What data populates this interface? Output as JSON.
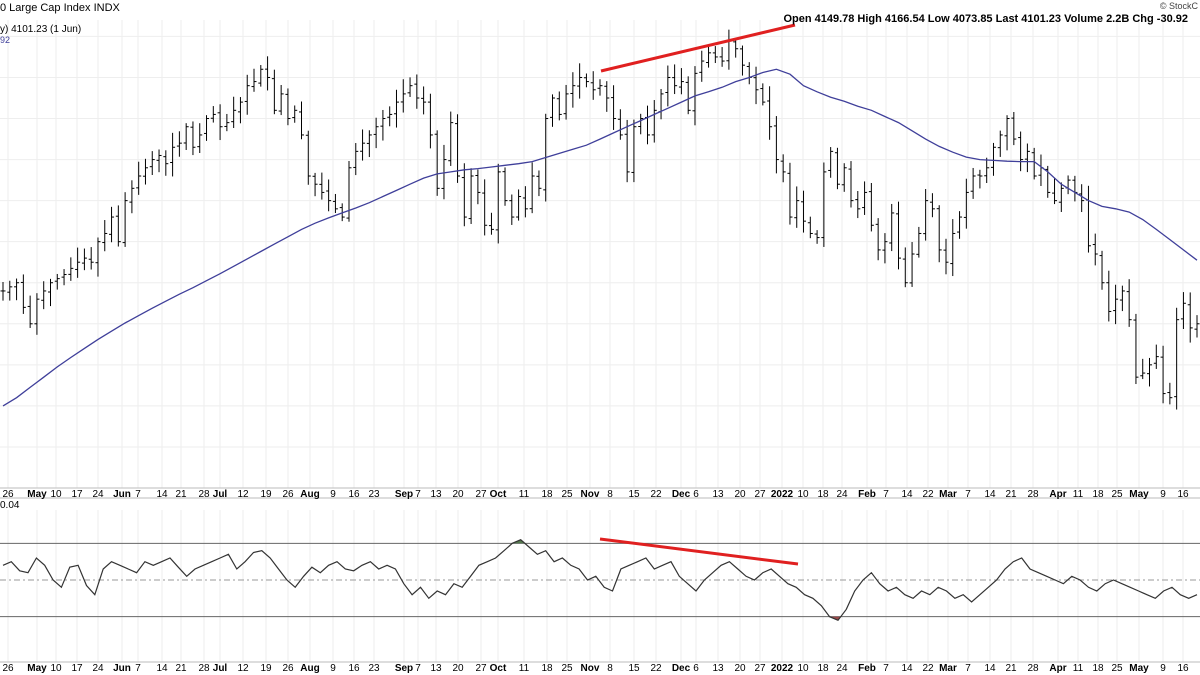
{
  "header": {
    "title": "0 Large Cap Index INDX",
    "legend_main": "y) 4101.23 (1 Jun)",
    "legend_sub": "92",
    "ohlc": "Open 4149.78  High 4166.54  Low 4073.85  Last 4101.23  Volume 2.2B  Chg -30.92",
    "source": "© StockC"
  },
  "lower_panel": {
    "label": "0.04"
  },
  "colors": {
    "price_bars": "#000000",
    "moving_average": "#3f3f9a",
    "trendline": "#e02020",
    "osc_line": "#333333",
    "overbought_fill": "#557a4e",
    "oversold_fill": "#9a4a4a",
    "grid": "#eeeeee"
  },
  "chart_data": [
    {
      "type": "ohlc",
      "xlabels": [
        "26",
        "May",
        "10",
        "17",
        "24",
        "Jun",
        "7",
        "14",
        "21",
        "28",
        "Jul",
        "12",
        "19",
        "26",
        "Aug",
        "9",
        "16",
        "23",
        "Sep",
        "7",
        "13",
        "20",
        "27",
        "Oct",
        "11",
        "18",
        "25",
        "Nov",
        "8",
        "15",
        "22",
        "Dec",
        "6",
        "13",
        "20",
        "27",
        "2022",
        "10",
        "18",
        "24",
        "Feb",
        "7",
        "14",
        "22",
        "Mar",
        "7",
        "14",
        "21",
        "28",
        "Apr",
        "11",
        "18",
        "25",
        "May",
        "9",
        "16"
      ],
      "bold_labels": [
        "May",
        "Jun",
        "Jul",
        "Aug",
        "Sep",
        "Oct",
        "Nov",
        "Dec",
        "2022",
        "Feb",
        "Mar",
        "Apr"
      ],
      "series": [
        {
          "name": "",
          "kind": "close_estimate",
          "values": [
            4180,
            4190,
            4200,
            4140,
            4100,
            4160,
            4180,
            4200,
            4210,
            4220,
            4235,
            4250,
            4260,
            4250,
            4300,
            4320,
            4360,
            4300,
            4400,
            4430,
            4460,
            4480,
            4500,
            4510,
            4490,
            4530,
            4540,
            4580,
            4530,
            4560,
            4600,
            4610,
            4580,
            4590,
            4620,
            4640,
            4680,
            4690,
            4720,
            4700,
            4620,
            4660,
            4600,
            4620,
            4560,
            4460,
            4440,
            4420,
            4400,
            4380,
            4360,
            4480,
            4520,
            4540,
            4560,
            4580,
            4600,
            4610,
            4640,
            4660,
            4680,
            4650,
            4640,
            4560,
            4430,
            4500,
            4590,
            4460,
            4360,
            4460,
            4420,
            4340,
            4330,
            4470,
            4400,
            4360,
            4410,
            4380,
            4460,
            4430,
            4600,
            4650,
            4610,
            4660,
            4680,
            4700,
            4690,
            4670,
            4680,
            4650,
            4600,
            4560,
            4470,
            4580,
            4600,
            4560,
            4620,
            4660,
            4700,
            4680,
            4690,
            4620,
            4710,
            4740,
            4760,
            4750,
            4740,
            4790,
            4770,
            4730,
            4700,
            4670,
            4640,
            4580,
            4500,
            4470,
            4360,
            4400,
            4350,
            4320,
            4310,
            4470,
            4520,
            4440,
            4480,
            4400,
            4380,
            4420,
            4340,
            4280,
            4300,
            4370,
            4260,
            4200,
            4270,
            4320,
            4400,
            4380,
            4280,
            4250,
            4320,
            4360,
            4420,
            4460,
            4460,
            4480,
            4530,
            4560,
            4600,
            4550,
            4500,
            4520,
            4460,
            4480,
            4420,
            4400,
            4430,
            4450,
            4420,
            4400,
            4290,
            4270,
            4200,
            4130,
            4160,
            4180,
            4110,
            3970,
            3980,
            4000,
            4020,
            3930,
            3920,
            4110,
            4150,
            4090,
            4100
          ]
        },
        {
          "name": "",
          "kind": "moving_average",
          "values": [
            3900,
            3920,
            3945,
            3970,
            3995,
            4018,
            4040,
            4062,
            4082,
            4102,
            4120,
            4138,
            4155,
            4172,
            4188,
            4205,
            4222,
            4240,
            4258,
            4276,
            4294,
            4312,
            4330,
            4345,
            4358,
            4370,
            4382,
            4395,
            4410,
            4425,
            4440,
            4455,
            4465,
            4470,
            4475,
            4478,
            4482,
            4486,
            4490,
            4495,
            4505,
            4515,
            4525,
            4535,
            4550,
            4565,
            4580,
            4595,
            4610,
            4625,
            4640,
            4655,
            4665,
            4676,
            4690,
            4700,
            4712,
            4720,
            4708,
            4680,
            4665,
            4652,
            4642,
            4630,
            4620,
            4605,
            4590,
            4570,
            4550,
            4532,
            4518,
            4506,
            4500,
            4498,
            4496,
            4495,
            4495,
            4470,
            4440,
            4420,
            4400,
            4386,
            4380,
            4372,
            4354,
            4330,
            4305,
            4280,
            4255
          ]
        }
      ],
      "ylim": [
        3700,
        4840
      ],
      "annotations": [
        "price trendline Nov-Jan (higher highs)"
      ]
    },
    {
      "type": "line",
      "name": "",
      "values": [
        58,
        60,
        55,
        54,
        62,
        58,
        50,
        46,
        57,
        58,
        47,
        42,
        56,
        60,
        58,
        56,
        54,
        60,
        58,
        60,
        62,
        57,
        52,
        56,
        58,
        60,
        62,
        64,
        56,
        60,
        65,
        66,
        62,
        56,
        50,
        46,
        52,
        57,
        54,
        58,
        60,
        56,
        55,
        58,
        60,
        56,
        58,
        56,
        48,
        42,
        46,
        40,
        44,
        42,
        48,
        46,
        52,
        58,
        60,
        62,
        66,
        70,
        72,
        68,
        64,
        66,
        60,
        62,
        58,
        56,
        50,
        52,
        46,
        44,
        56,
        58,
        60,
        62,
        56,
        58,
        60,
        52,
        48,
        44,
        50,
        54,
        58,
        60,
        56,
        52,
        50,
        54,
        56,
        52,
        48,
        46,
        42,
        40,
        36,
        30,
        28,
        34,
        44,
        50,
        54,
        48,
        44,
        46,
        42,
        40,
        44,
        42,
        46,
        44,
        40,
        42,
        38,
        42,
        46,
        50,
        56,
        60,
        62,
        56,
        54,
        52,
        50,
        48,
        52,
        50,
        46,
        44,
        48,
        50,
        48,
        46,
        44,
        42,
        40,
        44,
        46,
        42,
        40,
        42
      ],
      "overbought": 70,
      "midline": 50,
      "oversold": 30,
      "ylim": [
        20,
        80
      ],
      "annotations": [
        "oscillator trendline Nov-Jan (lower highs)"
      ]
    }
  ]
}
